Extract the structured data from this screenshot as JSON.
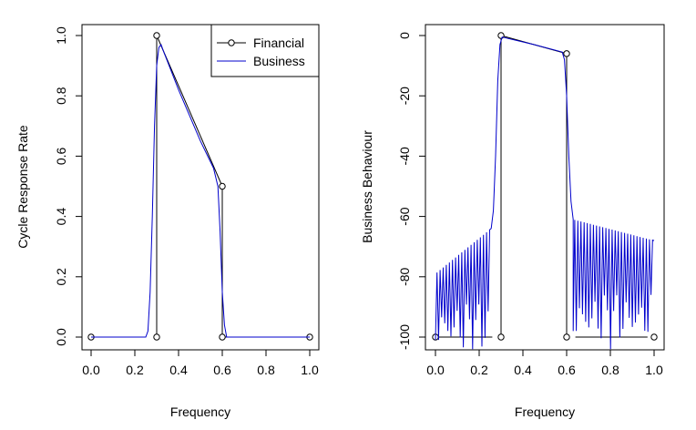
{
  "chart_data": [
    {
      "type": "line",
      "title": "",
      "xlabel": "Frequency",
      "ylabel": "Cycle Response Rate",
      "xlim": [
        0,
        1
      ],
      "ylim": [
        0,
        1
      ],
      "xticks": [
        "0.0",
        "0.2",
        "0.4",
        "0.6",
        "0.8",
        "1.0"
      ],
      "yticks": [
        "0.0",
        "0.2",
        "0.4",
        "0.6",
        "0.8",
        "1.0"
      ],
      "legend": {
        "position": "top-right",
        "entries": [
          "Financial",
          "Business"
        ]
      },
      "series": [
        {
          "name": "Financial",
          "color": "#000000",
          "style": "segments-with-open-circles",
          "segments": [
            [
              [
                0.0,
                0.0
              ],
              [
                0.25,
                0.0
              ]
            ],
            [
              [
                0.3,
                0.0
              ],
              [
                0.3,
                1.0
              ]
            ],
            [
              [
                0.3,
                1.0
              ],
              [
                0.6,
                0.5
              ]
            ],
            [
              [
                0.6,
                0.5
              ],
              [
                0.6,
                0.0
              ]
            ],
            [
              [
                0.6,
                0.0
              ],
              [
                1.0,
                0.0
              ]
            ]
          ],
          "markers": [
            [
              0.0,
              0.0
            ],
            [
              0.3,
              0.0
            ],
            [
              0.3,
              1.0
            ],
            [
              0.6,
              0.5
            ],
            [
              0.6,
              0.0
            ],
            [
              1.0,
              0.0
            ]
          ]
        },
        {
          "name": "Business",
          "color": "#0000cc",
          "x": [
            0,
            0.25,
            0.26,
            0.27,
            0.28,
            0.29,
            0.3,
            0.31,
            0.32,
            0.33,
            0.4,
            0.5,
            0.56,
            0.58,
            0.59,
            0.6,
            0.61,
            0.62,
            0.63,
            1.0
          ],
          "y": [
            0,
            0,
            0.02,
            0.15,
            0.4,
            0.7,
            0.9,
            0.96,
            0.97,
            0.95,
            0.82,
            0.65,
            0.56,
            0.5,
            0.35,
            0.15,
            0.04,
            0.0,
            0.0,
            0.0
          ]
        }
      ]
    },
    {
      "type": "line",
      "title": "",
      "xlabel": "Frequency",
      "ylabel": "Business Behaviour",
      "xlim": [
        0,
        1
      ],
      "ylim": [
        -100,
        0
      ],
      "xticks": [
        "0.0",
        "0.2",
        "0.4",
        "0.6",
        "0.8",
        "1.0"
      ],
      "yticks": [
        "0",
        "-20",
        "-40",
        "-60",
        "-80",
        "-100"
      ],
      "series": [
        {
          "name": "Financial",
          "color": "#000000",
          "style": "segments-with-open-circles",
          "segments": [
            [
              [
                0.0,
                -100
              ],
              [
                0.26,
                -100
              ]
            ],
            [
              [
                0.3,
                -100
              ],
              [
                0.3,
                0
              ]
            ],
            [
              [
                0.3,
                0
              ],
              [
                0.6,
                -6
              ]
            ],
            [
              [
                0.6,
                -6
              ],
              [
                0.6,
                -100
              ]
            ],
            [
              [
                0.64,
                -100
              ],
              [
                0.97,
                -100
              ]
            ]
          ],
          "markers": [
            [
              0.0,
              -100
            ],
            [
              0.3,
              -100
            ],
            [
              0.3,
              0
            ],
            [
              0.6,
              -6
            ],
            [
              0.6,
              -100
            ],
            [
              1.0,
              -100
            ]
          ]
        },
        {
          "name": "Business",
          "color": "#0000cc",
          "stopband_left": {
            "from": 0.0,
            "to": 0.255,
            "envelope_start": -79,
            "envelope_end": -64,
            "lobes": 18,
            "null_depth": -95
          },
          "transition": [
            [
              0.255,
              -64
            ],
            [
              0.265,
              -58
            ],
            [
              0.275,
              -40
            ],
            [
              0.285,
              -15
            ],
            [
              0.295,
              -3
            ],
            [
              0.305,
              -0.5
            ],
            [
              0.45,
              -3
            ],
            [
              0.58,
              -5.5
            ],
            [
              0.59,
              -8
            ],
            [
              0.6,
              -20
            ],
            [
              0.61,
              -40
            ],
            [
              0.62,
              -55
            ],
            [
              0.63,
              -61
            ]
          ],
          "stopband_right": {
            "from": 0.63,
            "to": 1.0,
            "envelope_start": -61,
            "envelope_end": -68,
            "lobes": 26,
            "null_depth": -92
          }
        }
      ]
    }
  ]
}
